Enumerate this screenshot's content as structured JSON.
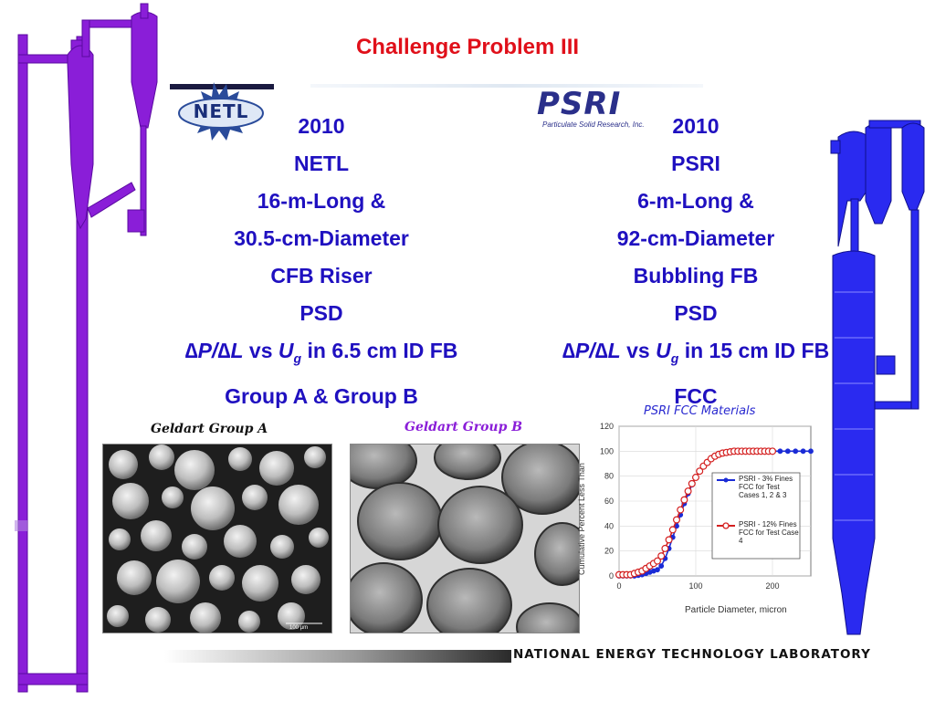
{
  "slide": {
    "title": "Challenge Problem III",
    "footer": "NATIONAL ENERGY TECHNOLOGY LABORATORY"
  },
  "logos": {
    "netl": {
      "text": "NETL"
    },
    "psri": {
      "text": "PSRI",
      "subtitle": "Particulate Solid Research, Inc."
    }
  },
  "left_column": {
    "lines": [
      "2010",
      "NETL",
      "16-m-Long &",
      "30.5-cm-Diameter",
      "CFB Riser",
      "PSD"
    ],
    "formula": {
      "sym1": "∆P/∆L",
      "vs": " vs ",
      "u": "U",
      "sub": "g",
      "tail": " in 6.5 cm ID FB"
    },
    "last": "Group A & Group B"
  },
  "right_column": {
    "lines": [
      "2010",
      "PSRI",
      "6-m-Long &",
      "92-cm-Diameter",
      "Bubbling FB",
      "PSD"
    ],
    "formula": {
      "sym1": "∆P/∆L",
      "vs": " vs ",
      "u": "U",
      "sub": "g",
      "tail": " in 15 cm ID FB"
    },
    "last": "FCC"
  },
  "images": {
    "group_a_caption": "Geldart Group A",
    "group_b_caption": "Geldart Group B",
    "scale_label": "100 µm"
  },
  "colors": {
    "title": "#e0101a",
    "body_text": "#1f10c0",
    "riser_left": "#8a1ed8",
    "riser_right": "#2a2af0"
  },
  "chart_data": {
    "type": "line",
    "title": "PSRI FCC Materials",
    "xlabel": "Particle Diameter, micron",
    "ylabel": "Cumulative Percent Less Than",
    "xlim": [
      0,
      250
    ],
    "ylim": [
      0,
      120
    ],
    "xticks": [
      0,
      100,
      200
    ],
    "yticks": [
      0,
      20,
      40,
      60,
      80,
      100,
      120
    ],
    "grid": true,
    "legend_position": "right",
    "series": [
      {
        "name": "PSRI - 3% Fines FCC for Test Cases 1, 2 & 3",
        "color": "#1a2bd6",
        "marker": "filled-circle",
        "x": [
          0,
          5,
          10,
          15,
          20,
          25,
          30,
          35,
          40,
          45,
          50,
          55,
          60,
          65,
          70,
          75,
          80,
          85,
          90,
          95,
          100,
          105,
          110,
          115,
          120,
          125,
          130,
          135,
          140,
          145,
          150,
          155,
          160,
          165,
          170,
          175,
          180,
          190,
          200,
          210,
          220,
          230,
          240,
          250
        ],
        "values": [
          0,
          0,
          0,
          0,
          0,
          0.5,
          1,
          2,
          3,
          4,
          5,
          8,
          14,
          22,
          31,
          40,
          49,
          58,
          66,
          73,
          79,
          84,
          88,
          91,
          94,
          96,
          97,
          98,
          99,
          99.5,
          100,
          100,
          100,
          100,
          100,
          100,
          100,
          100,
          100,
          100,
          100,
          100,
          100,
          100
        ]
      },
      {
        "name": "PSRI - 12% Fines FCC for Test Case 4",
        "color": "#d42020",
        "marker": "open-circle",
        "x": [
          0,
          5,
          10,
          15,
          20,
          25,
          30,
          35,
          40,
          45,
          50,
          55,
          60,
          65,
          70,
          75,
          80,
          85,
          90,
          95,
          100,
          105,
          110,
          115,
          120,
          125,
          130,
          135,
          140,
          145,
          150,
          155,
          160,
          165,
          170,
          175,
          180,
          185,
          190,
          195,
          200
        ],
        "values": [
          1,
          1,
          1,
          1,
          2,
          3,
          4,
          6,
          8,
          10,
          12,
          16,
          22,
          29,
          37,
          45,
          53,
          61,
          68,
          74,
          79,
          84,
          88,
          91,
          94,
          96,
          97.5,
          98.5,
          99,
          99.5,
          100,
          100,
          100,
          100,
          100,
          100,
          100,
          100,
          100,
          100,
          100
        ]
      }
    ]
  }
}
